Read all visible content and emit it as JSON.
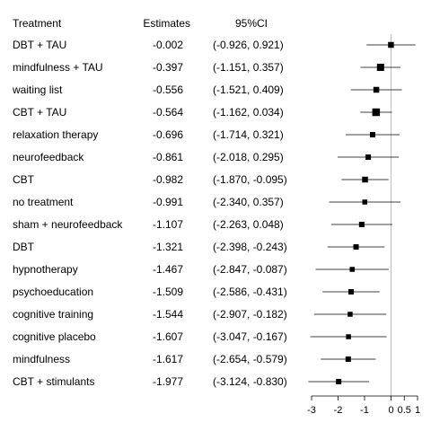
{
  "chart_data": {
    "type": "forest",
    "headers": {
      "treatment": "Treatment",
      "estimate": "Estimates",
      "ci": "95%CI"
    },
    "xlim": [
      -3.1,
      1.0
    ],
    "ticks": [
      -3,
      -2,
      -1,
      0,
      0.5,
      1
    ],
    "tick_labels": [
      "-3",
      "-2",
      "-1",
      "0",
      "0.5",
      "1"
    ],
    "reference_line": 0,
    "rows": [
      {
        "treatment": "DBT + TAU",
        "estimate": -0.002,
        "lower": -0.926,
        "upper": 0.921,
        "estimate_label": "-0.002",
        "ci_label": "(-0.926, 0.921)",
        "weight": 6.5
      },
      {
        "treatment": "mindfulness + TAU",
        "estimate": -0.397,
        "lower": -1.151,
        "upper": 0.357,
        "estimate_label": "-0.397",
        "ci_label": "(-1.151, 0.357)",
        "weight": 8
      },
      {
        "treatment": "waiting list",
        "estimate": -0.556,
        "lower": -1.521,
        "upper": 0.409,
        "estimate_label": "-0.556",
        "ci_label": "(-1.521, 0.409)",
        "weight": 6.5
      },
      {
        "treatment": "CBT + TAU",
        "estimate": -0.564,
        "lower": -1.162,
        "upper": 0.034,
        "estimate_label": "-0.564",
        "ci_label": "(-1.162, 0.034)",
        "weight": 8.5
      },
      {
        "treatment": "relaxation therapy",
        "estimate": -0.696,
        "lower": -1.714,
        "upper": 0.321,
        "estimate_label": "-0.696",
        "ci_label": "(-1.714, 0.321)",
        "weight": 6
      },
      {
        "treatment": "neurofeedback",
        "estimate": -0.861,
        "lower": -2.018,
        "upper": 0.295,
        "estimate_label": "-0.861",
        "ci_label": "(-2.018, 0.295)",
        "weight": 6
      },
      {
        "treatment": "CBT",
        "estimate": -0.982,
        "lower": -1.87,
        "upper": -0.095,
        "estimate_label": "-0.982",
        "ci_label": "(-1.870, -0.095)",
        "weight": 6.5
      },
      {
        "treatment": "no treatment",
        "estimate": -0.991,
        "lower": -2.34,
        "upper": 0.357,
        "estimate_label": "-0.991",
        "ci_label": "(-2.340, 0.357)",
        "weight": 5.5
      },
      {
        "treatment": "sham + neurofeedback",
        "estimate": -1.107,
        "lower": -2.263,
        "upper": 0.048,
        "estimate_label": "-1.107",
        "ci_label": "(-2.263, 0.048)",
        "weight": 6
      },
      {
        "treatment": "DBT",
        "estimate": -1.321,
        "lower": -2.398,
        "upper": -0.243,
        "estimate_label": "-1.321",
        "ci_label": "(-2.398, -0.243)",
        "weight": 6
      },
      {
        "treatment": "hypnotherapy",
        "estimate": -1.467,
        "lower": -2.847,
        "upper": -0.087,
        "estimate_label": "-1.467",
        "ci_label": "(-2.847, -0.087)",
        "weight": 5.5
      },
      {
        "treatment": "psychoeducation",
        "estimate": -1.509,
        "lower": -2.586,
        "upper": -0.431,
        "estimate_label": "-1.509",
        "ci_label": "(-2.586, -0.431)",
        "weight": 6
      },
      {
        "treatment": "cognitive training",
        "estimate": -1.544,
        "lower": -2.907,
        "upper": -0.182,
        "estimate_label": "-1.544",
        "ci_label": "(-2.907, -0.182)",
        "weight": 5.5
      },
      {
        "treatment": "cognitive placebo",
        "estimate": -1.607,
        "lower": -3.047,
        "upper": -0.167,
        "estimate_label": "-1.607",
        "ci_label": "(-3.047, -0.167)",
        "weight": 5.5
      },
      {
        "treatment": "mindfulness",
        "estimate": -1.617,
        "lower": -2.654,
        "upper": -0.579,
        "estimate_label": "-1.617",
        "ci_label": "(-2.654, -0.579)",
        "weight": 6
      },
      {
        "treatment": "CBT + stimulants",
        "estimate": -1.977,
        "lower": -3.124,
        "upper": -0.83,
        "estimate_label": "-1.977",
        "ci_label": "(-3.124, -0.830)",
        "weight": 6
      }
    ]
  }
}
